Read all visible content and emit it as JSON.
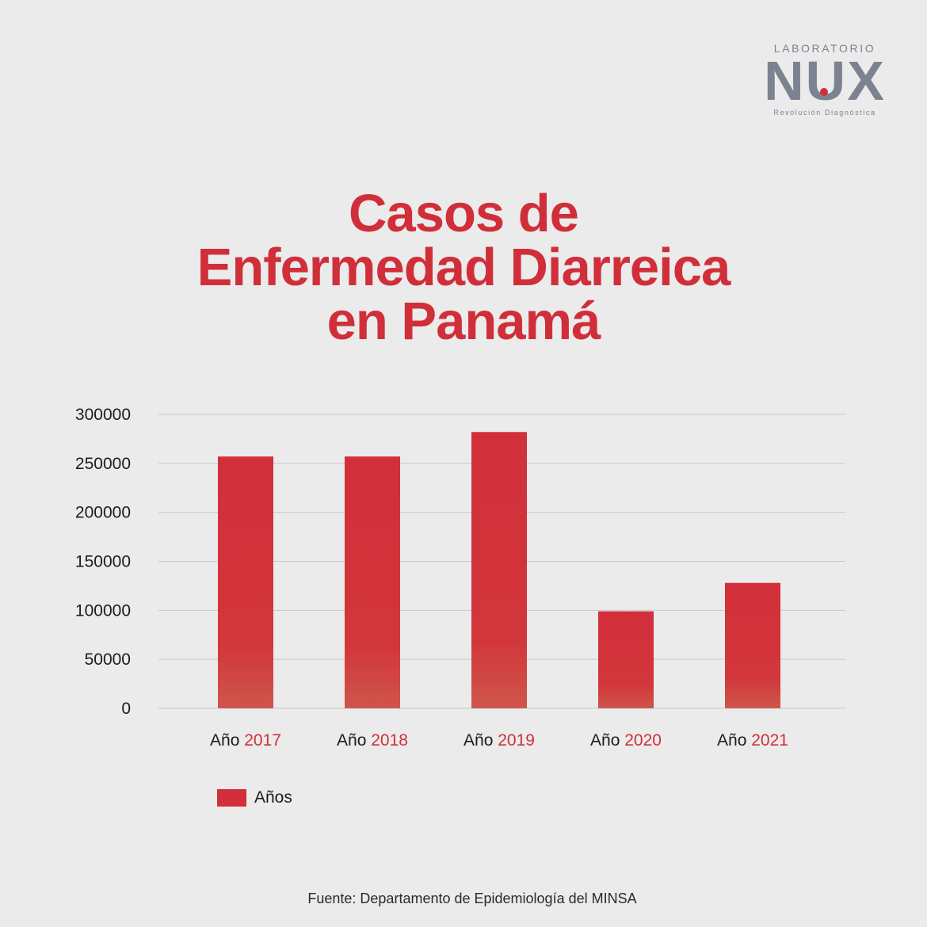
{
  "logo": {
    "top_text": "LABORATORIO",
    "mark": "NUX",
    "tagline": "Revolución Diagnóstica",
    "color": "#7d8290",
    "dot_color": "#d02f3a"
  },
  "title": {
    "line1": "Casos de",
    "line2": "Enfermedad Diarreica",
    "line3": "en Panamá"
  },
  "source": "Fuente: Departamento de Epidemiología del MINSA",
  "chart_data": {
    "type": "bar",
    "title": "Casos de Enfermedad Diarreica en Panamá",
    "category_prefix": "Año",
    "categories": [
      "2017",
      "2018",
      "2019",
      "2020",
      "2021"
    ],
    "series": [
      {
        "name": "Años",
        "values": [
          257000,
          257000,
          282000,
          99000,
          128000
        ],
        "color": "#d22f3b"
      }
    ],
    "yticks": [
      0,
      50000,
      100000,
      150000,
      200000,
      250000,
      300000
    ],
    "ylim": [
      0,
      300000
    ],
    "xlabel": "",
    "ylabel": "",
    "grid": true,
    "legend_position": "bottom-left",
    "accent_color": "#d02f3a"
  }
}
